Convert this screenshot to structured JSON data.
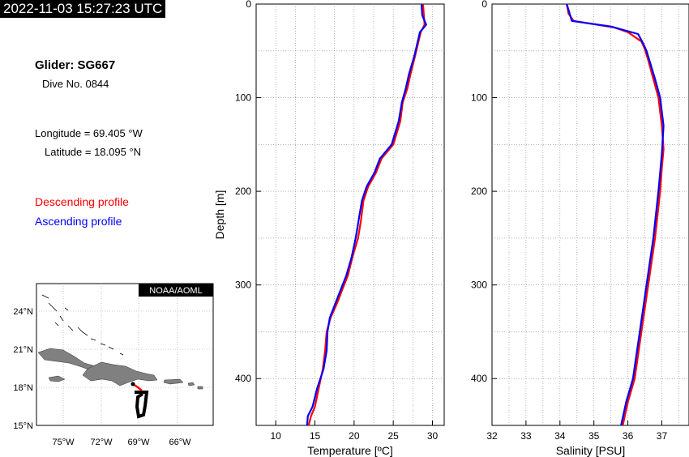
{
  "timestamp": "2022-11-03 15:27:23 UTC",
  "info": {
    "glider": "Glider: SG667",
    "dive": "Dive No. 0844",
    "longitude": "Longitude = 69.405 °W",
    "latitude": "Latitude = 18.095 °N",
    "descending_label": "Descending profile",
    "ascending_label": "Ascending profile"
  },
  "colors": {
    "descending": "#ff0000",
    "ascending": "#0000ff",
    "land": "#808080",
    "track": "#000000"
  },
  "map": {
    "badge": "NOAA/AOML",
    "lat_ticks": [
      "24°N",
      "21°N",
      "18°N",
      "15°N"
    ],
    "lon_ticks": [
      "75°W",
      "72°W",
      "69°W",
      "66°W"
    ]
  },
  "chart_data": [
    {
      "type": "line",
      "title": "",
      "xlabel": "Temperature [ºC]",
      "ylabel": "Depth [m]",
      "xlim": [
        7.5,
        31.5
      ],
      "ylim": [
        450,
        0
      ],
      "y_inverted": true,
      "grid": true,
      "xticks": [
        10,
        15,
        20,
        25,
        30
      ],
      "yticks": [
        0,
        100,
        200,
        300,
        400
      ],
      "series": [
        {
          "name": "Descending profile",
          "points": [
            [
              28.8,
              0
            ],
            [
              28.9,
              12
            ],
            [
              29.0,
              22
            ],
            [
              28.5,
              30
            ],
            [
              27.8,
              55
            ],
            [
              27.2,
              75
            ],
            [
              26.8,
              90
            ],
            [
              26.2,
              105
            ],
            [
              25.9,
              125
            ],
            [
              25.0,
              150
            ],
            [
              23.5,
              165
            ],
            [
              22.8,
              180
            ],
            [
              21.8,
              195
            ],
            [
              21.2,
              210
            ],
            [
              20.9,
              230
            ],
            [
              20.5,
              250
            ],
            [
              19.8,
              270
            ],
            [
              19.2,
              290
            ],
            [
              18.5,
              305
            ],
            [
              17.8,
              320
            ],
            [
              17.0,
              335
            ],
            [
              16.5,
              350
            ],
            [
              16.3,
              370
            ],
            [
              16.0,
              390
            ],
            [
              15.5,
              410
            ],
            [
              15.0,
              430
            ],
            [
              14.5,
              440
            ],
            [
              14.2,
              450
            ]
          ]
        },
        {
          "name": "Ascending profile",
          "points": [
            [
              28.6,
              0
            ],
            [
              28.7,
              12
            ],
            [
              29.2,
              22
            ],
            [
              28.4,
              30
            ],
            [
              27.7,
              55
            ],
            [
              27.0,
              75
            ],
            [
              26.6,
              90
            ],
            [
              26.1,
              105
            ],
            [
              25.7,
              125
            ],
            [
              24.8,
              150
            ],
            [
              23.3,
              165
            ],
            [
              22.6,
              180
            ],
            [
              21.6,
              195
            ],
            [
              21.0,
              210
            ],
            [
              20.6,
              230
            ],
            [
              20.2,
              250
            ],
            [
              19.7,
              270
            ],
            [
              19.0,
              290
            ],
            [
              18.3,
              305
            ],
            [
              17.6,
              320
            ],
            [
              16.9,
              335
            ],
            [
              16.6,
              350
            ],
            [
              16.5,
              370
            ],
            [
              16.1,
              390
            ],
            [
              15.3,
              410
            ],
            [
              14.7,
              430
            ],
            [
              14.1,
              440
            ],
            [
              14.0,
              450
            ]
          ]
        }
      ]
    },
    {
      "type": "line",
      "title": "",
      "xlabel": "Salinity [PSU]",
      "ylabel": "",
      "xlim": [
        32,
        37.8
      ],
      "ylim": [
        450,
        0
      ],
      "y_inverted": true,
      "grid": true,
      "xticks": [
        32,
        33,
        34,
        35,
        36,
        37
      ],
      "yticks": [
        0,
        100,
        200,
        300,
        400
      ],
      "series": [
        {
          "name": "Descending profile",
          "points": [
            [
              34.2,
              0
            ],
            [
              34.25,
              10
            ],
            [
              34.4,
              18
            ],
            [
              35.6,
              25
            ],
            [
              36.0,
              30
            ],
            [
              36.4,
              40
            ],
            [
              36.5,
              48
            ],
            [
              36.6,
              60
            ],
            [
              36.75,
              80
            ],
            [
              36.9,
              100
            ],
            [
              37.0,
              130
            ],
            [
              37.05,
              155
            ],
            [
              37.0,
              175
            ],
            [
              36.95,
              200
            ],
            [
              36.8,
              250
            ],
            [
              36.6,
              300
            ],
            [
              36.4,
              350
            ],
            [
              36.2,
              400
            ],
            [
              36.0,
              425
            ],
            [
              35.85,
              450
            ]
          ]
        },
        {
          "name": "Ascending profile",
          "points": [
            [
              34.2,
              0
            ],
            [
              34.3,
              12
            ],
            [
              34.35,
              18
            ],
            [
              35.5,
              24
            ],
            [
              36.3,
              32
            ],
            [
              36.45,
              42
            ],
            [
              36.55,
              50
            ],
            [
              36.65,
              62
            ],
            [
              36.8,
              80
            ],
            [
              36.95,
              100
            ],
            [
              37.05,
              130
            ],
            [
              37.0,
              160
            ],
            [
              36.95,
              180
            ],
            [
              36.9,
              200
            ],
            [
              36.75,
              250
            ],
            [
              36.55,
              300
            ],
            [
              36.35,
              350
            ],
            [
              36.15,
              400
            ],
            [
              35.95,
              425
            ],
            [
              35.8,
              450
            ]
          ]
        }
      ]
    }
  ]
}
